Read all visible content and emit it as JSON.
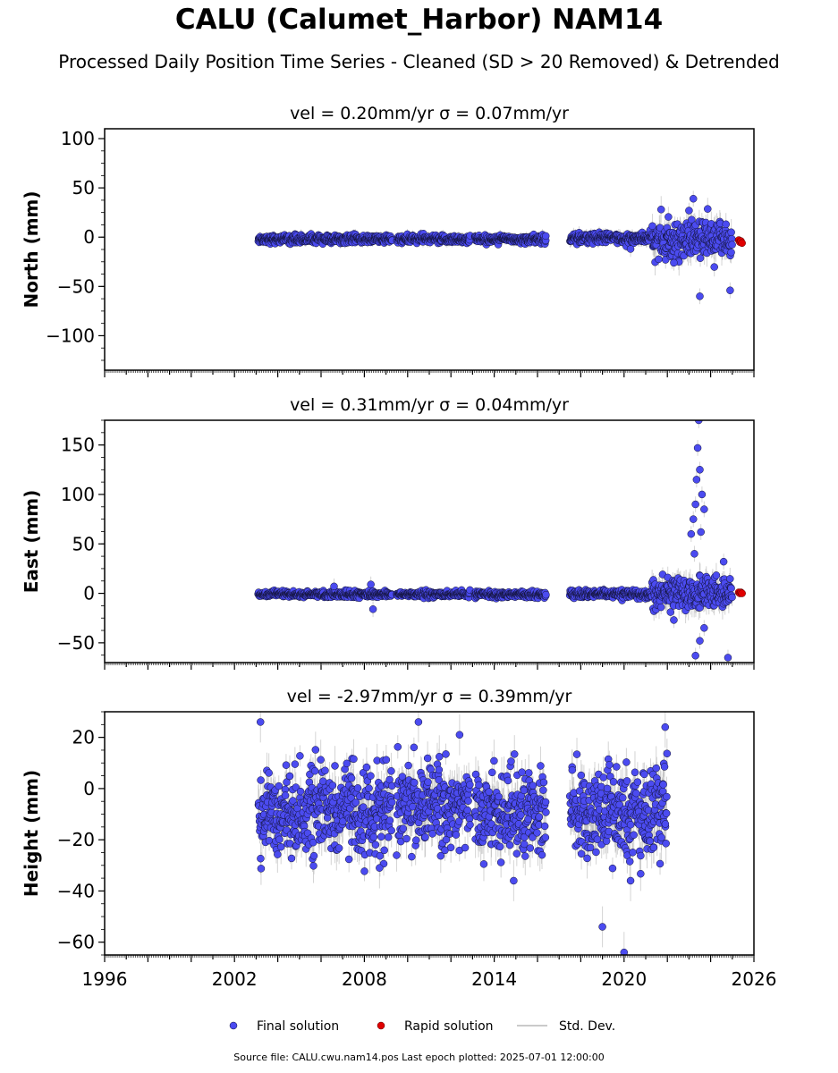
{
  "header": {
    "title": "CALU (Calumet_Harbor) NAM14",
    "subtitle": "Processed Daily Position Time Series - Cleaned (SD > 20 Removed) & Detrended"
  },
  "footer": {
    "source": "Source file: CALU.cwu.nam14.pos  Last epoch plotted: 2025-07-01 12:00:00"
  },
  "colors": {
    "final": "#4b4bf0",
    "rapid": "#e00000",
    "stddev": "#b8b8b8"
  },
  "chart_data": [
    {
      "type": "scatter",
      "title": "vel = 0.20mm/yr   σ = 0.07mm/yr",
      "ylabel": "North (mm)",
      "xlim": [
        1996,
        2026
      ],
      "ylim": [
        -135,
        110
      ],
      "yticks": [
        100,
        50,
        0,
        -50,
        -100
      ],
      "segments": [
        {
          "start": 2003.1,
          "end": 2009.3,
          "center": -2,
          "spread": 2,
          "sd": 4
        },
        {
          "start": 2009.5,
          "end": 2012.9,
          "center": -2,
          "spread": 2,
          "sd": 4
        },
        {
          "start": 2013.1,
          "end": 2016.4,
          "center": -2,
          "spread": 2,
          "sd": 4
        },
        {
          "start": 2017.5,
          "end": 2021.3,
          "center": -1,
          "spread": 2.5,
          "sd": 5
        },
        {
          "start": 2021.3,
          "end": 2025.0,
          "center": -2,
          "spread": 9,
          "sd": 10
        }
      ],
      "outliers": [
        {
          "x": 2023.2,
          "y": 39
        },
        {
          "x": 2023.5,
          "y": -60
        },
        {
          "x": 2024.9,
          "y": -54
        },
        {
          "x": 2022.3,
          "y": -26
        },
        {
          "x": 2023.0,
          "y": 27
        },
        {
          "x": 2020.3,
          "y": -12
        }
      ],
      "rapid": [
        {
          "x": 2025.3,
          "y": -3
        },
        {
          "x": 2025.35,
          "y": -5
        },
        {
          "x": 2025.4,
          "y": -4
        },
        {
          "x": 2025.45,
          "y": -6
        }
      ]
    },
    {
      "type": "scatter",
      "title": "vel = 0.31mm/yr   σ = 0.04mm/yr",
      "ylabel": "East (mm)",
      "xlim": [
        1996,
        2026
      ],
      "ylim": [
        -70,
        175
      ],
      "yticks": [
        150,
        100,
        50,
        0,
        -50
      ],
      "segments": [
        {
          "start": 2003.1,
          "end": 2009.3,
          "center": -1,
          "spread": 1.5,
          "sd": 3
        },
        {
          "start": 2009.5,
          "end": 2012.9,
          "center": -1,
          "spread": 1.5,
          "sd": 3
        },
        {
          "start": 2013.1,
          "end": 2016.4,
          "center": -1,
          "spread": 1.5,
          "sd": 3
        },
        {
          "start": 2017.5,
          "end": 2021.3,
          "center": -1,
          "spread": 2,
          "sd": 4
        },
        {
          "start": 2021.3,
          "end": 2025.0,
          "center": 0,
          "spread": 8,
          "sd": 10
        }
      ],
      "outliers": [
        {
          "x": 2008.3,
          "y": 9
        },
        {
          "x": 2008.4,
          "y": -16
        },
        {
          "x": 2006.6,
          "y": 7
        },
        {
          "x": 2023.1,
          "y": 60
        },
        {
          "x": 2023.2,
          "y": 75
        },
        {
          "x": 2023.3,
          "y": 90
        },
        {
          "x": 2023.35,
          "y": 115
        },
        {
          "x": 2023.4,
          "y": 147
        },
        {
          "x": 2023.45,
          "y": 175
        },
        {
          "x": 2023.5,
          "y": 125
        },
        {
          "x": 2023.6,
          "y": 100
        },
        {
          "x": 2023.7,
          "y": 85
        },
        {
          "x": 2023.25,
          "y": 40
        },
        {
          "x": 2023.55,
          "y": 62
        },
        {
          "x": 2023.3,
          "y": -63
        },
        {
          "x": 2023.5,
          "y": -48
        },
        {
          "x": 2024.8,
          "y": -65
        },
        {
          "x": 2024.6,
          "y": 32
        },
        {
          "x": 2022.3,
          "y": -27
        },
        {
          "x": 2023.7,
          "y": -35
        }
      ],
      "rapid": [
        {
          "x": 2025.3,
          "y": 1
        },
        {
          "x": 2025.35,
          "y": 0
        },
        {
          "x": 2025.4,
          "y": 1
        },
        {
          "x": 2025.45,
          "y": 0
        }
      ]
    },
    {
      "type": "scatter",
      "title": "vel = -2.97mm/yr   σ = 0.39mm/yr",
      "ylabel": "Height (mm)",
      "xlim": [
        1996,
        2026
      ],
      "ylim": [
        -65,
        30
      ],
      "yticks": [
        20,
        0,
        -20,
        -40,
        -60
      ],
      "segments": [
        {
          "start": 2003.1,
          "end": 2009.3,
          "center": -9,
          "spread": 8,
          "sd": 6
        },
        {
          "start": 2009.5,
          "end": 2012.9,
          "center": -6,
          "spread": 8,
          "sd": 6
        },
        {
          "start": 2013.1,
          "end": 2016.4,
          "center": -9,
          "spread": 8,
          "sd": 6
        },
        {
          "start": 2017.5,
          "end": 2021.3,
          "center": -10,
          "spread": 8,
          "sd": 6
        },
        {
          "start": 2021.3,
          "end": 2022.0,
          "center": -7,
          "spread": 9,
          "sd": 7
        }
      ],
      "outliers": [
        {
          "x": 2003.2,
          "y": 26
        },
        {
          "x": 2010.5,
          "y": 26
        },
        {
          "x": 2012.4,
          "y": 21
        },
        {
          "x": 2021.9,
          "y": 24
        },
        {
          "x": 2014.9,
          "y": -36
        },
        {
          "x": 2019.0,
          "y": -54
        },
        {
          "x": 2020.0,
          "y": -64
        },
        {
          "x": 2008.7,
          "y": -31
        },
        {
          "x": 2020.3,
          "y": -36
        }
      ],
      "rapid": []
    }
  ],
  "legend": {
    "placement": "bottom-center",
    "final_label": "Final solution",
    "rapid_label": "Rapid solution",
    "sd_label": "Std. Dev."
  },
  "x_tick_labels": [
    "1996",
    "2002",
    "2008",
    "2014",
    "2020",
    "2026"
  ]
}
